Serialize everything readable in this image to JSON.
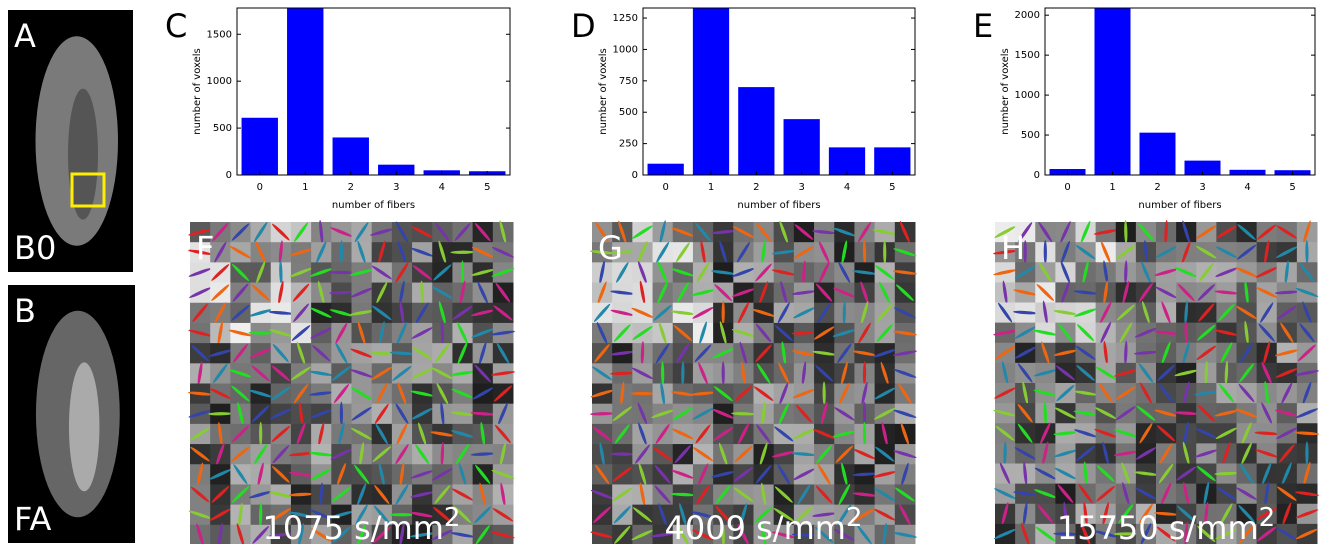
{
  "chart_data": [
    {
      "type": "bar",
      "panel": "C",
      "xlabel": "number of fibers",
      "ylabel": "number of voxels",
      "categories": [
        "0",
        "1",
        "2",
        "3",
        "4",
        "5"
      ],
      "values": [
        610,
        1780,
        400,
        110,
        50,
        40
      ],
      "color": "#0000ff",
      "ylim": [
        0,
        1780
      ],
      "yticks": [
        0,
        500,
        1000,
        1500
      ]
    },
    {
      "type": "bar",
      "panel": "D",
      "xlabel": "number of fibers",
      "ylabel": "number of voxels",
      "categories": [
        "0",
        "1",
        "2",
        "3",
        "4",
        "5"
      ],
      "values": [
        90,
        1330,
        700,
        445,
        220,
        220
      ],
      "color": "#0000ff",
      "ylim": [
        0,
        1330
      ],
      "yticks": [
        0,
        250,
        500,
        750,
        1000,
        1250
      ]
    },
    {
      "type": "bar",
      "panel": "E",
      "xlabel": "number of fibers",
      "ylabel": "number of voxels",
      "categories": [
        "0",
        "1",
        "2",
        "3",
        "4",
        "5"
      ],
      "values": [
        75,
        2090,
        530,
        180,
        65,
        60
      ],
      "color": "#0000ff",
      "ylim": [
        0,
        2090
      ],
      "yticks": [
        0,
        500,
        1000,
        1500,
        2000
      ]
    }
  ],
  "images": [
    {
      "letter": "A",
      "label": "B0"
    },
    {
      "letter": "B",
      "label": "FA"
    },
    {
      "letter": "F",
      "label": "1075 s/mm",
      "sup": "2"
    },
    {
      "letter": "G",
      "label": "4009 s/mm",
      "sup": "2"
    },
    {
      "letter": "H",
      "label": "15750 s/mm",
      "sup": "2"
    }
  ]
}
